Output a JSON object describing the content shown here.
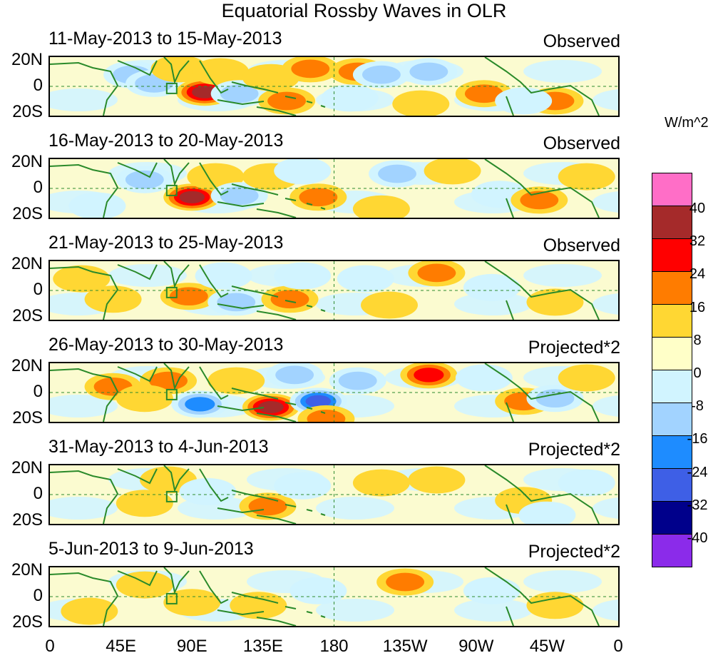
{
  "chart_data": {
    "type": "heatmap",
    "title": "Equatorial Rossby Waves in OLR",
    "units": "W/m^2",
    "lat_ticks": [
      "20N",
      "0",
      "20S"
    ],
    "lon_ticks": [
      "0",
      "45E",
      "90E",
      "135E",
      "180",
      "135W",
      "90W",
      "45W",
      "0"
    ],
    "colorbar": {
      "levels": [
        "40",
        "32",
        "24",
        "16",
        "8",
        "0",
        "-8",
        "-16",
        "-24",
        "-32",
        "-40"
      ],
      "colors": [
        "#ff6ec7",
        "#a52a2a",
        "#ff0000",
        "#ff7c00",
        "#ffd733",
        "#ffffc8",
        "#d1f4ff",
        "#a2d3ff",
        "#1e8cff",
        "#3e5fe6",
        "#00008b",
        "#8b2bea"
      ]
    },
    "panels": [
      {
        "date_range": "11-May-2013 to 15-May-2013",
        "label": "Observed",
        "anomalies": [
          {
            "lon": 52,
            "lat": 8,
            "v": -14
          },
          {
            "lon": 66,
            "lat": 2,
            "v": -18
          },
          {
            "lon": 82,
            "lat": 12,
            "v": 10
          },
          {
            "lon": 98,
            "lat": -4,
            "v": 32
          },
          {
            "lon": 108,
            "lat": 10,
            "v": 10
          },
          {
            "lon": 120,
            "lat": -5,
            "v": -14
          },
          {
            "lon": 140,
            "lat": 6,
            "v": 10
          },
          {
            "lon": 165,
            "lat": 12,
            "v": 14
          },
          {
            "lon": 150,
            "lat": -10,
            "v": 12
          },
          {
            "lon": 195,
            "lat": 10,
            "v": 18
          },
          {
            "lon": 210,
            "lat": 8,
            "v": -14
          },
          {
            "lon": 240,
            "lat": 10,
            "v": -12
          },
          {
            "lon": 190,
            "lat": -8,
            "v": -8
          },
          {
            "lon": 235,
            "lat": -12,
            "v": 10
          },
          {
            "lon": 275,
            "lat": -5,
            "v": 14
          },
          {
            "lon": 320,
            "lat": -10,
            "v": 12
          },
          {
            "lon": 300,
            "lat": -10,
            "v": -10
          }
        ]
      },
      {
        "date_range": "16-May-2013 to 20-May-2013",
        "label": "Observed",
        "anomalies": [
          {
            "lon": 60,
            "lat": 6,
            "v": -18
          },
          {
            "lon": 90,
            "lat": -6,
            "v": 28
          },
          {
            "lon": 105,
            "lat": 8,
            "v": 10
          },
          {
            "lon": 120,
            "lat": -5,
            "v": -16
          },
          {
            "lon": 140,
            "lat": 8,
            "v": 10
          },
          {
            "lon": 170,
            "lat": -6,
            "v": 16
          },
          {
            "lon": 160,
            "lat": 12,
            "v": -10
          },
          {
            "lon": 220,
            "lat": 10,
            "v": -12
          },
          {
            "lon": 255,
            "lat": 12,
            "v": 10
          },
          {
            "lon": 210,
            "lat": -14,
            "v": 10
          },
          {
            "lon": 285,
            "lat": -4,
            "v": -10
          },
          {
            "lon": 310,
            "lat": -8,
            "v": 16
          },
          {
            "lon": 340,
            "lat": 8,
            "v": 8
          },
          {
            "lon": 30,
            "lat": -12,
            "v": -8
          }
        ]
      },
      {
        "date_range": "21-May-2013 to 25-May-2013",
        "label": "Observed",
        "anomalies": [
          {
            "lon": 20,
            "lat": 8,
            "v": 8
          },
          {
            "lon": 40,
            "lat": -6,
            "v": 10
          },
          {
            "lon": 88,
            "lat": -4,
            "v": 16
          },
          {
            "lon": 110,
            "lat": 10,
            "v": -10
          },
          {
            "lon": 118,
            "lat": -8,
            "v": -16
          },
          {
            "lon": 152,
            "lat": -6,
            "v": 18
          },
          {
            "lon": 160,
            "lat": 10,
            "v": -8
          },
          {
            "lon": 200,
            "lat": 8,
            "v": -10
          },
          {
            "lon": 245,
            "lat": 12,
            "v": 18
          },
          {
            "lon": 215,
            "lat": -10,
            "v": 10
          },
          {
            "lon": 280,
            "lat": 2,
            "v": -8
          },
          {
            "lon": 320,
            "lat": -8,
            "v": 10
          }
        ]
      },
      {
        "date_range": "26-May-2013 to 30-May-2013",
        "label": "Projected*2",
        "anomalies": [
          {
            "lon": 40,
            "lat": 4,
            "v": 16
          },
          {
            "lon": 75,
            "lat": 8,
            "v": 14
          },
          {
            "lon": 60,
            "lat": -4,
            "v": 10
          },
          {
            "lon": 95,
            "lat": -8,
            "v": -22
          },
          {
            "lon": 118,
            "lat": 8,
            "v": 10
          },
          {
            "lon": 140,
            "lat": -10,
            "v": 30
          },
          {
            "lon": 170,
            "lat": -6,
            "v": -32
          },
          {
            "lon": 175,
            "lat": -18,
            "v": 16
          },
          {
            "lon": 155,
            "lat": 12,
            "v": -12
          },
          {
            "lon": 195,
            "lat": 8,
            "v": -16
          },
          {
            "lon": 240,
            "lat": 12,
            "v": 26
          },
          {
            "lon": 275,
            "lat": 10,
            "v": -10
          },
          {
            "lon": 300,
            "lat": -6,
            "v": 12
          },
          {
            "lon": 320,
            "lat": -4,
            "v": -14
          },
          {
            "lon": 340,
            "lat": 10,
            "v": 8
          }
        ]
      },
      {
        "date_range": "31-May-2013 to 4-Jun-2013",
        "label": "Projected*2",
        "anomalies": [
          {
            "lon": 75,
            "lat": 10,
            "v": 10
          },
          {
            "lon": 60,
            "lat": -6,
            "v": 10
          },
          {
            "lon": 100,
            "lat": 2,
            "v": -8
          },
          {
            "lon": 138,
            "lat": -8,
            "v": 14
          },
          {
            "lon": 160,
            "lat": 6,
            "v": -6
          },
          {
            "lon": 210,
            "lat": 8,
            "v": 8
          },
          {
            "lon": 245,
            "lat": 10,
            "v": 6
          },
          {
            "lon": 300,
            "lat": -4,
            "v": 10
          },
          {
            "lon": 315,
            "lat": -14,
            "v": -10
          },
          {
            "lon": 340,
            "lat": 8,
            "v": -6
          }
        ]
      },
      {
        "date_range": "5-Jun-2013 to 9-Jun-2013",
        "label": "Projected*2",
        "anomalies": [
          {
            "lon": 60,
            "lat": 8,
            "v": 6
          },
          {
            "lon": 90,
            "lat": -4,
            "v": 6
          },
          {
            "lon": 132,
            "lat": -6,
            "v": 8
          },
          {
            "lon": 170,
            "lat": 4,
            "v": -6
          },
          {
            "lon": 225,
            "lat": 10,
            "v": 12
          },
          {
            "lon": 280,
            "lat": 4,
            "v": -6
          },
          {
            "lon": 320,
            "lat": -6,
            "v": 8
          },
          {
            "lon": 25,
            "lat": -10,
            "v": 6
          }
        ]
      }
    ]
  }
}
